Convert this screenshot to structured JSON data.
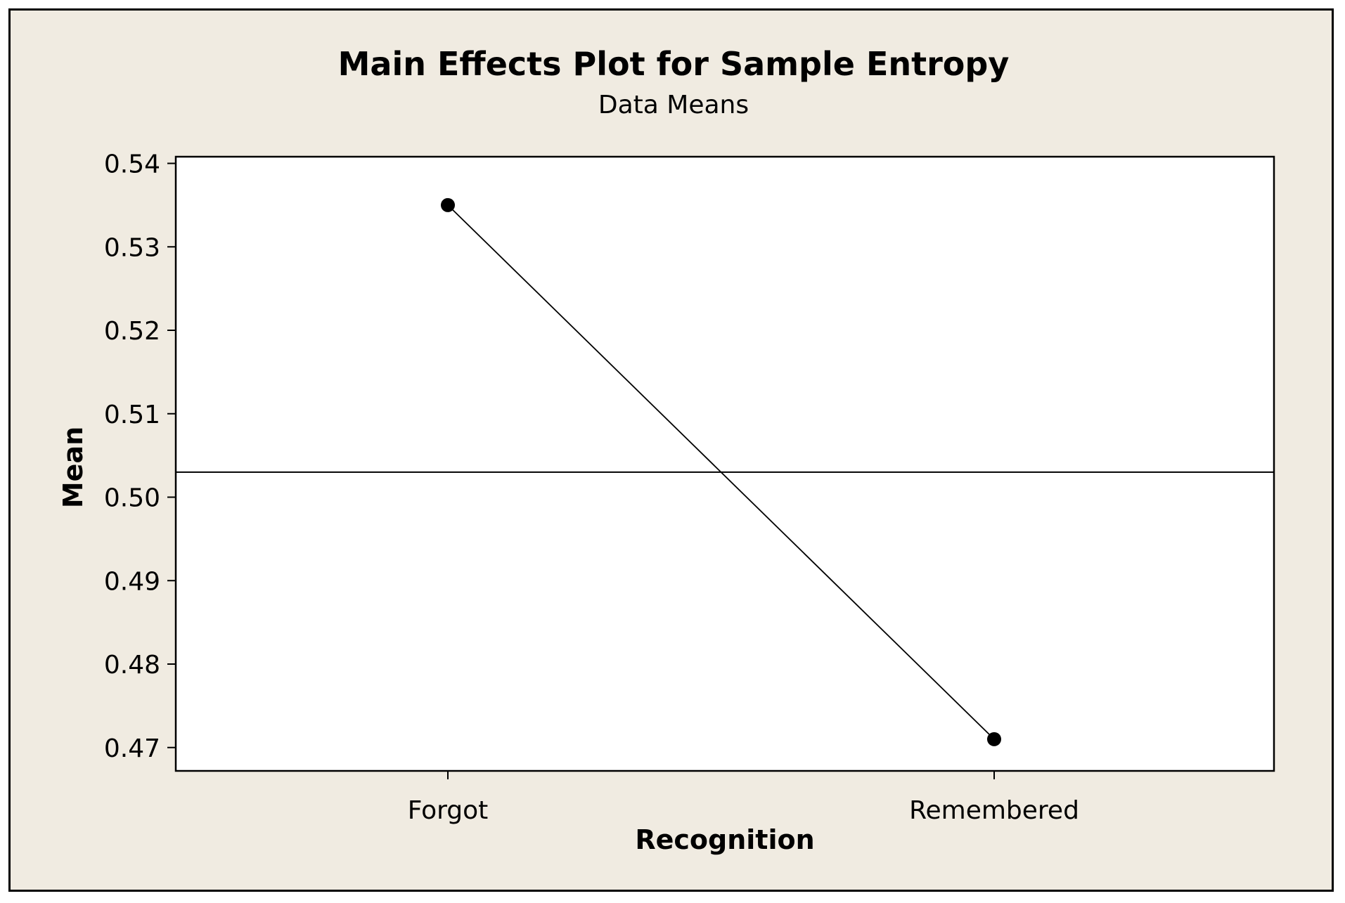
{
  "chart_data": {
    "type": "line",
    "title": "Main Effects Plot for Sample Entropy",
    "subtitle": "Data Means",
    "xlabel": "Recognition",
    "ylabel": "Mean",
    "categories": [
      "Forgot",
      "Remembered"
    ],
    "values": [
      0.535,
      0.471
    ],
    "reference_line": 0.503,
    "ylim": [
      0.4672,
      0.5408
    ],
    "yticks": [
      0.47,
      0.48,
      0.49,
      0.5,
      0.51,
      0.52,
      0.53,
      0.54
    ],
    "ytick_labels": [
      "0.47",
      "0.48",
      "0.49",
      "0.50",
      "0.51",
      "0.52",
      "0.53",
      "0.54"
    ],
    "grid": false,
    "legend": "none"
  },
  "colors": {
    "background": "#f0ebe1",
    "plot_area": "#ffffff",
    "line": "#000000",
    "marker": "#000000"
  }
}
